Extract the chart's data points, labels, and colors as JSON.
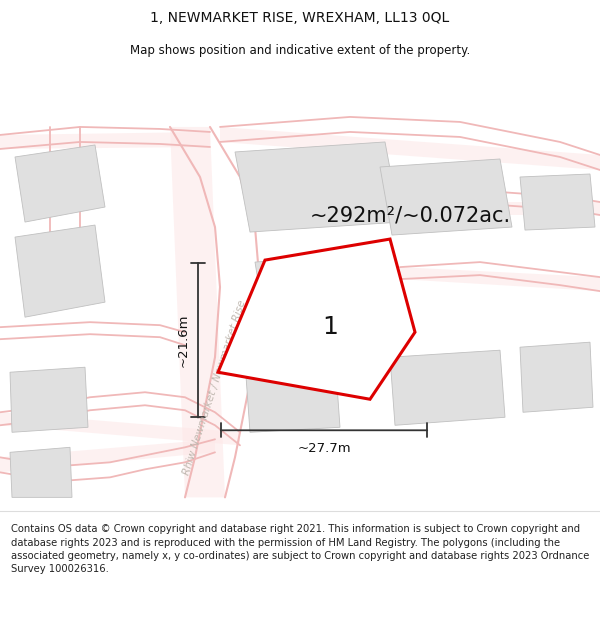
{
  "title": "1, NEWMARKET RISE, WREXHAM, LL13 0QL",
  "subtitle": "Map shows position and indicative extent of the property.",
  "area_text": "~292m²/~0.072ac.",
  "label_1": "1",
  "dim_width": "~27.7m",
  "dim_height": "~21.6m",
  "road_label": "Rhiw Newmarket / Newmarket Rise",
  "footer": "Contains OS data © Crown copyright and database right 2021. This information is subject to Crown copyright and database rights 2023 and is reproduced with the permission of HM Land Registry. The polygons (including the associated geometry, namely x, y co-ordinates) are subject to Crown copyright and database rights 2023 Ordnance Survey 100026316.",
  "bg_color": "#ffffff",
  "map_bg": "#ffffff",
  "road_color": "#f0b8b8",
  "road_fill": "#fde8e8",
  "building_color": "#e0e0e0",
  "building_edge": "#c0c0c0",
  "plot_color": "#dd0000",
  "plot_fill": "#ffffff",
  "text_color": "#111111",
  "dim_color": "#333333",
  "road_label_color": "#c0b8b0",
  "footer_bg": "#ffffff"
}
